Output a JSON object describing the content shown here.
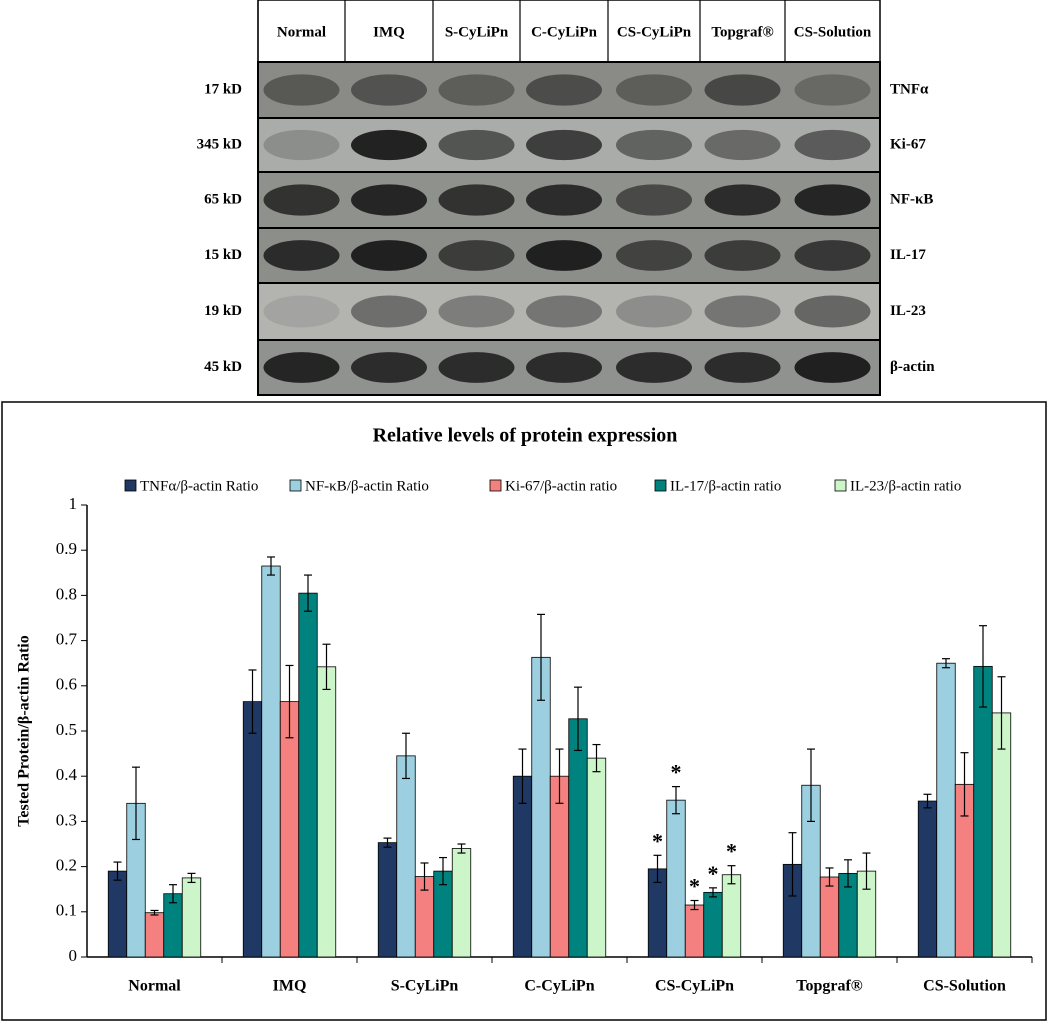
{
  "blot": {
    "lanes": [
      "Normal",
      "IMQ",
      "S-CyLiPn",
      "C-CyLiPn",
      "CS-CyLiPn",
      "Topgraf®",
      "CS-Solution"
    ],
    "sizes": [
      "17 kD",
      "345 kD",
      "65 kD",
      "15 kD",
      "19 kD",
      "45 kD"
    ],
    "proteins": [
      "TNFα",
      "Ki-67",
      "NF-κB",
      "IL-17",
      "IL-23",
      "β-actin"
    ]
  },
  "chart_data": {
    "type": "bar",
    "title": "Relative levels of protein expression",
    "ylabel": "Tested Protein/β-actin  Ratio",
    "categories": [
      "Normal",
      "IMQ",
      "S-CyLiPn",
      "C-CyLiPn",
      "CS-CyLiPn",
      "Topgraf®",
      "CS-Solution"
    ],
    "series": [
      {
        "name": "TNFα/β-actin Ratio",
        "color": "#1f3864",
        "values": [
          0.19,
          0.565,
          0.253,
          0.4,
          0.195,
          0.205,
          0.345
        ],
        "errors": [
          0.02,
          0.07,
          0.01,
          0.06,
          0.03,
          0.07,
          0.015
        ],
        "marks": [
          null,
          null,
          null,
          null,
          "*",
          null,
          null
        ]
      },
      {
        "name": "NF-κB/β-actin Ratio",
        "color": "#9ccfe0",
        "values": [
          0.34,
          0.865,
          0.445,
          0.663,
          0.347,
          0.38,
          0.65
        ],
        "errors": [
          0.08,
          0.02,
          0.05,
          0.095,
          0.03,
          0.08,
          0.01
        ],
        "marks": [
          null,
          null,
          null,
          null,
          "*",
          null,
          null
        ]
      },
      {
        "name": "Ki-67/β-actin ratio",
        "color": "#f4817f",
        "values": [
          0.098,
          0.565,
          0.178,
          0.4,
          0.115,
          0.177,
          0.382
        ],
        "errors": [
          0.005,
          0.08,
          0.03,
          0.06,
          0.01,
          0.02,
          0.07
        ],
        "marks": [
          null,
          null,
          null,
          null,
          "*",
          null,
          null
        ]
      },
      {
        "name": "IL-17/β-actin ratio",
        "color": "#00827f",
        "values": [
          0.14,
          0.805,
          0.19,
          0.527,
          0.143,
          0.185,
          0.643
        ],
        "errors": [
          0.02,
          0.04,
          0.03,
          0.07,
          0.01,
          0.03,
          0.09
        ],
        "marks": [
          null,
          null,
          null,
          null,
          "*",
          null,
          null
        ]
      },
      {
        "name": "IL-23/β-actin ratio",
        "color": "#ccf5c9",
        "values": [
          0.175,
          0.642,
          0.24,
          0.44,
          0.182,
          0.19,
          0.54
        ],
        "errors": [
          0.01,
          0.05,
          0.01,
          0.03,
          0.02,
          0.04,
          0.08
        ],
        "marks": [
          null,
          null,
          null,
          null,
          "*",
          null,
          null
        ]
      }
    ],
    "ylim": [
      0,
      1
    ],
    "yticks": [
      0,
      0.1,
      0.2,
      0.3,
      0.4,
      0.5,
      0.6,
      0.7,
      0.8,
      0.9,
      1
    ],
    "grid": false
  }
}
